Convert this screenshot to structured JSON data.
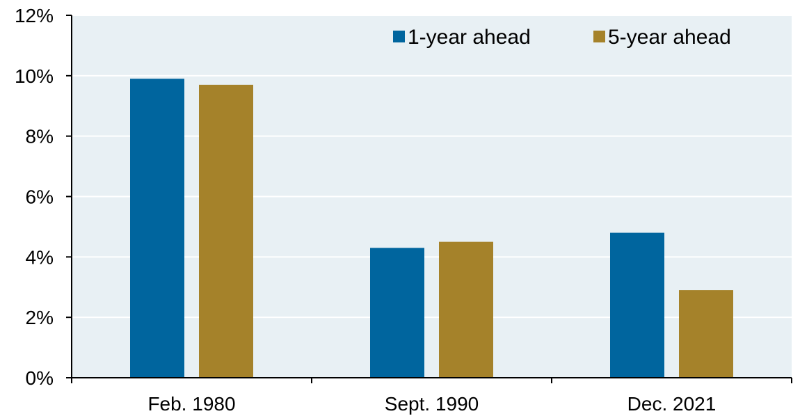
{
  "chart_data": {
    "type": "bar",
    "title": "",
    "xlabel": "",
    "ylabel": "",
    "categories": [
      "Feb. 1980",
      "Sept. 1990",
      "Dec. 2021"
    ],
    "series": [
      {
        "name": "1-year ahead",
        "color": "#00659e",
        "values": [
          9.9,
          4.3,
          4.8
        ]
      },
      {
        "name": "5-year ahead",
        "color": "#a5822a",
        "values": [
          9.7,
          4.5,
          2.9
        ]
      }
    ],
    "ylim": [
      0,
      12
    ],
    "yticks": [
      0,
      2,
      4,
      6,
      8,
      10,
      12
    ],
    "ytick_labels": [
      "0%",
      "2%",
      "4%",
      "6%",
      "8%",
      "10%",
      "12%"
    ],
    "grid": true,
    "legend_position": "top-right",
    "plot_background": "#e8f0f4",
    "gridline_color": "#ffffff"
  }
}
